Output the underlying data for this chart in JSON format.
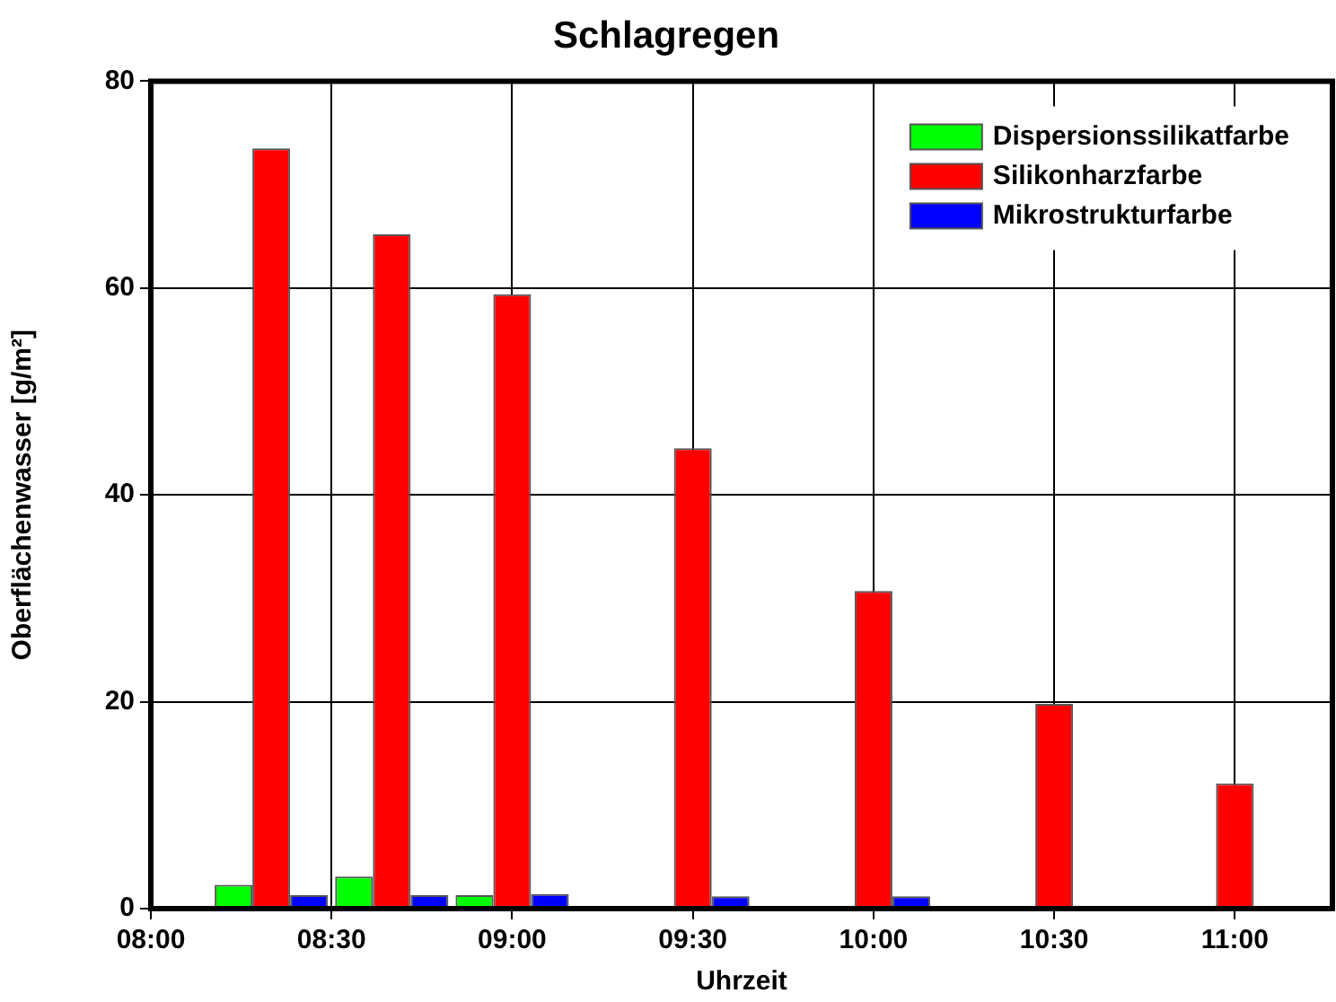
{
  "chart_data": {
    "type": "bar",
    "title": "Schlagregen",
    "xlabel": "Uhrzeit",
    "ylabel": "Oberflächenwasser [g/m²]",
    "x": [
      8.3333,
      8.6667,
      9,
      9.5,
      10,
      10.5,
      11
    ],
    "series": [
      {
        "name": "Dispersionssilikatfarbe",
        "color": "#00ff00",
        "values": [
          2.3,
          3.1,
          1.3,
          null,
          null,
          null,
          null
        ]
      },
      {
        "name": "Silikonharzfarbe",
        "color": "#ff0000",
        "values": [
          73.5,
          65.2,
          59.4,
          44.5,
          30.7,
          19.8,
          12.1
        ]
      },
      {
        "name": "Mikrostrukturfarbe",
        "color": "#0000ff",
        "values": [
          1.3,
          1.3,
          1.4,
          1.2,
          1.2,
          null,
          null
        ]
      }
    ],
    "xlim": [
      8,
      11.27
    ],
    "xticks": [
      {
        "value": 8,
        "label": "08:00"
      },
      {
        "value": 8.5,
        "label": "08:30"
      },
      {
        "value": 9,
        "label": "09:00"
      },
      {
        "value": 9.5,
        "label": "09:30"
      },
      {
        "value": 10,
        "label": "10:00"
      },
      {
        "value": 10.5,
        "label": "10:30"
      },
      {
        "value": 11,
        "label": "11:00"
      }
    ],
    "ylim": [
      0,
      80
    ],
    "yticks": [
      0,
      20,
      40,
      60,
      80
    ],
    "grid": true,
    "legend": "top right"
  }
}
